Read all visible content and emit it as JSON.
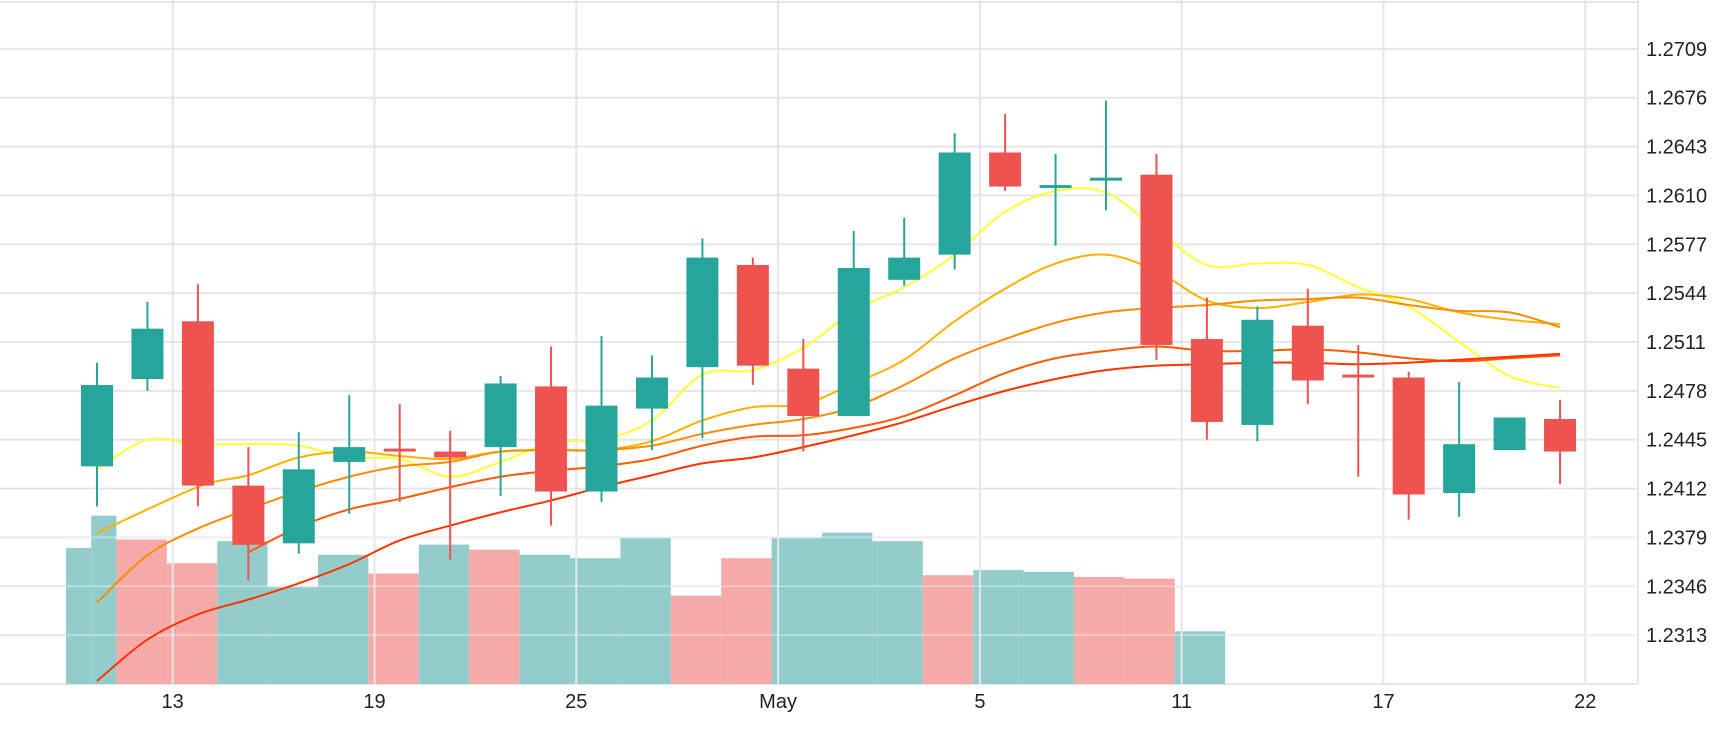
{
  "chart_data": {
    "type": "candlestick",
    "title": "",
    "xlabel": "",
    "ylabel": "",
    "grid": true,
    "y_axis_position": "right",
    "ylim": [
      1.228,
      1.2742
    ],
    "y_ticks": [
      1.2313,
      1.2346,
      1.2379,
      1.2412,
      1.2445,
      1.2478,
      1.2511,
      1.2544,
      1.2577,
      1.261,
      1.2643,
      1.2676,
      1.2709
    ],
    "y_tick_labels": [
      "1.2313",
      "1.2346",
      "1.2379",
      "1.2412",
      "1.2445",
      "1.2478",
      "1.2511",
      "1.2544",
      "1.2577",
      "1.2610",
      "1.2643",
      "1.2676",
      "1.2709"
    ],
    "x_ticks": [
      {
        "index": 1.5,
        "label": "13"
      },
      {
        "index": 5.5,
        "label": "19"
      },
      {
        "index": 9.5,
        "label": "25"
      },
      {
        "index": 13.5,
        "label": "May"
      },
      {
        "index": 17.5,
        "label": "5"
      },
      {
        "index": 21.5,
        "label": "11"
      },
      {
        "index": 25.5,
        "label": "17"
      },
      {
        "index": 29.5,
        "label": "22"
      }
    ],
    "colors": {
      "up": "#26a69a",
      "down": "#ef5350",
      "volume_up": "#92cdcb",
      "volume_down": "#f5aaa8",
      "grid": "#e6e6e6",
      "ma": [
        "#ffff33",
        "#ffb100",
        "#ff8c00",
        "#ff5a00",
        "#ff3300"
      ]
    },
    "candles": [
      {
        "open": 1.2427,
        "close": 1.2482,
        "high": 1.2497,
        "low": 1.24
      },
      {
        "open": 1.2486,
        "close": 1.252,
        "high": 1.2538,
        "low": 1.2478
      },
      {
        "open": 1.2525,
        "close": 1.2414,
        "high": 1.255,
        "low": 1.24
      },
      {
        "open": 1.2414,
        "close": 1.2374,
        "high": 1.244,
        "low": 1.235
      },
      {
        "open": 1.2375,
        "close": 1.2425,
        "high": 1.245,
        "low": 1.2368
      },
      {
        "open": 1.243,
        "close": 1.244,
        "high": 1.2475,
        "low": 1.2395
      },
      {
        "open": 1.2439,
        "close": 1.2437,
        "high": 1.2469,
        "low": 1.2403
      },
      {
        "open": 1.2437,
        "close": 1.2433,
        "high": 1.2451,
        "low": 1.2364
      },
      {
        "open": 1.244,
        "close": 1.2483,
        "high": 1.2488,
        "low": 1.2407
      },
      {
        "open": 1.2481,
        "close": 1.241,
        "high": 1.2508,
        "low": 1.2387
      },
      {
        "open": 1.241,
        "close": 1.2468,
        "high": 1.2515,
        "low": 1.2403
      },
      {
        "open": 1.2466,
        "close": 1.2487,
        "high": 1.2502,
        "low": 1.2438
      },
      {
        "open": 1.2494,
        "close": 1.2568,
        "high": 1.2581,
        "low": 1.2446
      },
      {
        "open": 1.2563,
        "close": 1.2495,
        "high": 1.2568,
        "low": 1.2482
      },
      {
        "open": 1.2493,
        "close": 1.2461,
        "high": 1.2513,
        "low": 1.2437
      },
      {
        "open": 1.2461,
        "close": 1.2561,
        "high": 1.2586,
        "low": 1.2461
      },
      {
        "open": 1.2553,
        "close": 1.2568,
        "high": 1.2595,
        "low": 1.2549
      },
      {
        "open": 1.257,
        "close": 1.2639,
        "high": 1.2652,
        "low": 1.256
      },
      {
        "open": 1.2639,
        "close": 1.2616,
        "high": 1.2665,
        "low": 1.2613
      },
      {
        "open": 1.2617,
        "close": 1.2617,
        "high": 1.2638,
        "low": 1.2576
      },
      {
        "open": 1.262,
        "close": 1.2622,
        "high": 1.2674,
        "low": 1.26
      },
      {
        "open": 1.2624,
        "close": 1.2509,
        "high": 1.2638,
        "low": 1.2499
      },
      {
        "open": 1.2513,
        "close": 1.2457,
        "high": 1.2541,
        "low": 1.2445
      },
      {
        "open": 1.2455,
        "close": 1.2526,
        "high": 1.2535,
        "low": 1.2444
      },
      {
        "open": 1.2522,
        "close": 1.2485,
        "high": 1.2547,
        "low": 1.2469
      },
      {
        "open": 1.2489,
        "close": 1.2487,
        "high": 1.2509,
        "low": 1.242
      },
      {
        "open": 1.2487,
        "close": 1.2408,
        "high": 1.2491,
        "low": 1.2391
      },
      {
        "open": 1.2409,
        "close": 1.2442,
        "high": 1.2484,
        "low": 1.2393
      },
      {
        "open": 1.2438,
        "close": 1.246,
        "high": 1.246,
        "low": 1.2438
      },
      {
        "open": 1.2459,
        "close": 1.2437,
        "high": 1.2472,
        "low": 1.2415
      }
    ],
    "volume": {
      "scale_max": 1.0,
      "bars": [
        {
          "start": 0,
          "end": 1,
          "value": 0.8,
          "dir": "up"
        },
        {
          "start": 1,
          "end": 2,
          "value": 0.99,
          "dir": "up"
        },
        {
          "start": 2,
          "end": 4,
          "value": 0.85,
          "dir": "down"
        },
        {
          "start": 4,
          "end": 6,
          "value": 0.71,
          "dir": "down"
        },
        {
          "start": 6,
          "end": 8,
          "value": 0.84,
          "dir": "up"
        },
        {
          "start": 8,
          "end": 10,
          "value": 0.57,
          "dir": "up"
        },
        {
          "start": 10,
          "end": 12,
          "value": 0.76,
          "dir": "up"
        },
        {
          "start": 12,
          "end": 14,
          "value": 0.65,
          "dir": "down"
        },
        {
          "start": 14,
          "end": 16,
          "value": 0.82,
          "dir": "up"
        },
        {
          "start": 16,
          "end": 18,
          "value": 0.79,
          "dir": "down"
        },
        {
          "start": 18,
          "end": 20,
          "value": 0.76,
          "dir": "up"
        },
        {
          "start": 20,
          "end": 22,
          "value": 0.74,
          "dir": "up"
        },
        {
          "start": 22,
          "end": 24,
          "value": 0.86,
          "dir": "up"
        },
        {
          "start": 24,
          "end": 26,
          "value": 0.52,
          "dir": "down"
        },
        {
          "start": 26,
          "end": 28,
          "value": 0.74,
          "dir": "down"
        },
        {
          "start": 28,
          "end": 30,
          "value": 0.86,
          "dir": "up"
        },
        {
          "start": 30,
          "end": 32,
          "value": 0.89,
          "dir": "up"
        },
        {
          "start": 32,
          "end": 34,
          "value": 0.84,
          "dir": "up"
        },
        {
          "start": 34,
          "end": 36,
          "value": 0.64,
          "dir": "down"
        },
        {
          "start": 36,
          "end": 38,
          "value": 0.67,
          "dir": "up"
        },
        {
          "start": 38,
          "end": 40,
          "value": 0.66,
          "dir": "up"
        },
        {
          "start": 40,
          "end": 42,
          "value": 0.63,
          "dir": "down"
        },
        {
          "start": 42,
          "end": 44,
          "value": 0.62,
          "dir": "down"
        },
        {
          "start": 44,
          "end": 46,
          "value": 0.31,
          "dir": "up"
        }
      ]
    },
    "moving_averages": [
      {
        "color": "#ffff33",
        "values": [
          1.2425,
          1.2445,
          1.2442,
          1.2442,
          1.2441,
          1.2433,
          1.2432,
          1.242,
          1.243,
          1.2443,
          1.2445,
          1.2458,
          1.2489,
          1.2492,
          1.2507,
          1.2532,
          1.2548,
          1.257,
          1.2599,
          1.2613,
          1.2612,
          1.2587,
          1.2563,
          1.2564,
          1.2563,
          1.2548,
          1.2535,
          1.2511,
          1.2488,
          1.248
        ]
      },
      {
        "color": "#ffb100",
        "values": [
          1.2382,
          null,
          1.2413,
          1.2421,
          1.2433,
          1.2437,
          1.2434,
          1.2432,
          1.2437,
          1.2438,
          1.2438,
          1.2444,
          1.2458,
          1.2467,
          1.2469,
          1.2483,
          1.2499,
          1.2525,
          1.2547,
          1.2564,
          1.257,
          1.2559,
          1.2539,
          1.2534,
          1.2538,
          1.2543,
          1.254,
          1.2531,
          1.2526,
          1.2523
        ]
      },
      {
        "color": "#ff8c00",
        "values": [
          1.2335,
          1.2367,
          1.2385,
          1.2398,
          1.241,
          1.242,
          1.2427,
          1.243,
          1.2437,
          1.2438,
          1.2438,
          1.2441,
          1.2449,
          1.2455,
          1.2459,
          1.2467,
          1.2482,
          1.25,
          1.2513,
          1.2524,
          1.2531,
          1.2534,
          1.2536,
          1.2539,
          1.254,
          1.2541,
          1.2536,
          1.2532,
          1.2531,
          1.2521
        ]
      },
      {
        "color": "#ff5a00",
        "values": [
          null,
          null,
          null,
          1.2369,
          1.2386,
          1.2398,
          1.2405,
          1.2413,
          1.242,
          1.2424,
          1.2427,
          1.2432,
          1.2441,
          1.2447,
          1.2448,
          1.2453,
          1.2461,
          1.2475,
          1.249,
          1.25,
          1.2505,
          1.2508,
          1.2505,
          1.2505,
          1.2506,
          1.2504,
          1.25,
          1.2498,
          1.25,
          1.2502
        ]
      },
      {
        "color": "#ff3300",
        "values": [
          1.2282,
          1.231,
          1.2327,
          1.2337,
          1.2348,
          1.2361,
          1.2377,
          1.2387,
          1.2396,
          1.2404,
          1.2413,
          1.2421,
          1.2429,
          1.2433,
          1.244,
          1.2448,
          1.2457,
          1.2468,
          1.2478,
          1.2486,
          1.2492,
          1.2495,
          1.2496,
          1.2497,
          1.2497,
          1.2496,
          1.2497,
          1.2499,
          1.2501,
          1.2503
        ]
      }
    ]
  }
}
